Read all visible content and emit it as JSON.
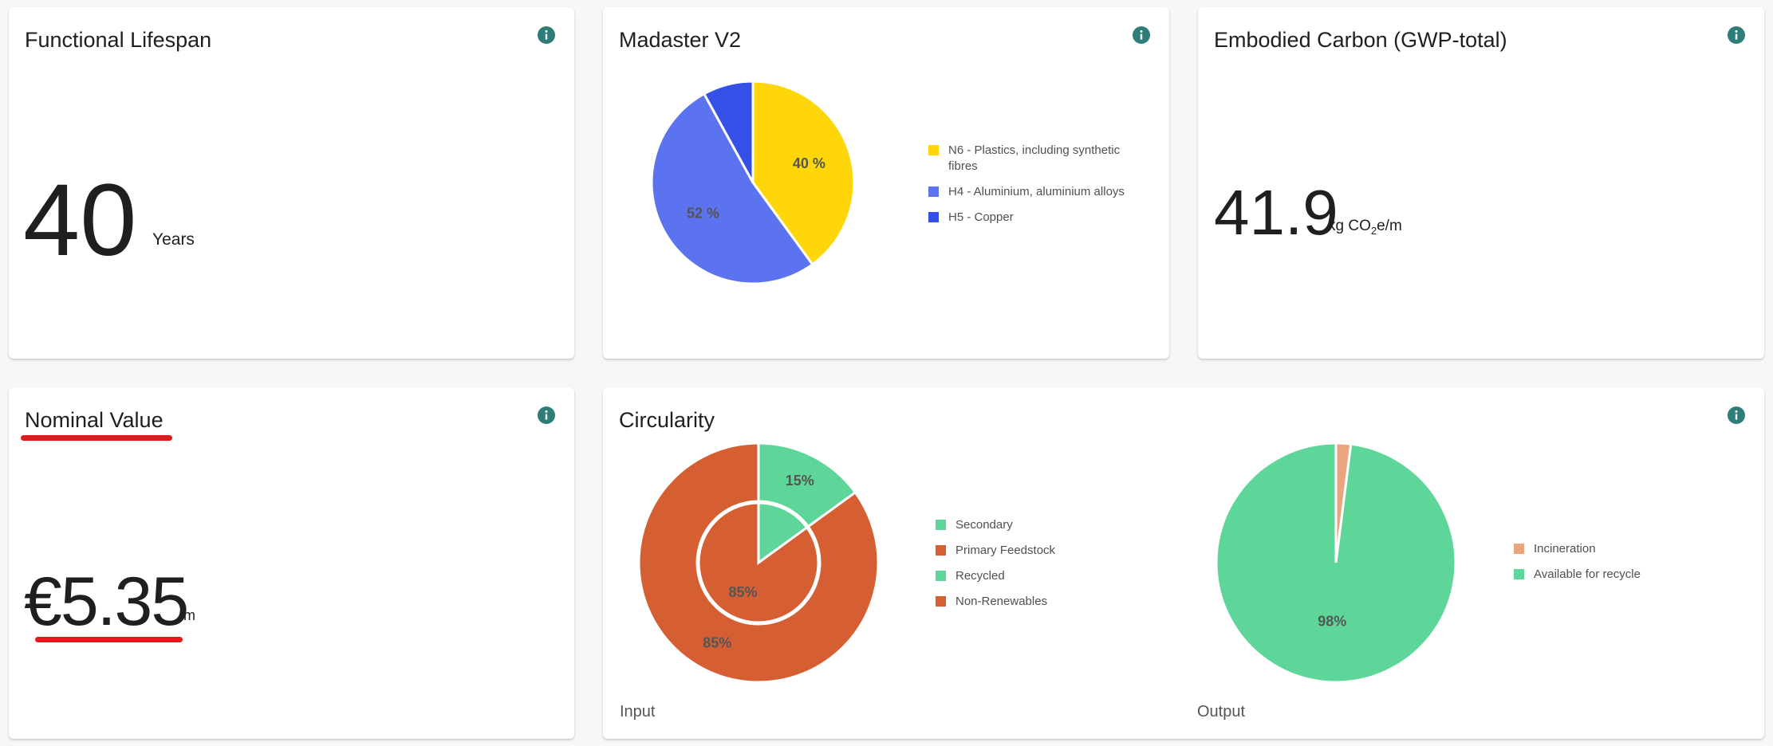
{
  "cards": {
    "lifespan": {
      "title": "Functional Lifespan",
      "value": "40",
      "unit": "Years"
    },
    "madaster": {
      "title": "Madaster V2",
      "pie": [
        {
          "label": "N6 - Plastics, including synthetic fibres",
          "value": 40,
          "display": "40 %",
          "color": "#FFD60A"
        },
        {
          "label": "H4 - Aluminium, aluminium alloys",
          "value": 52,
          "display": "52 %",
          "color": "#5B73EE"
        },
        {
          "label": "H5 - Copper",
          "value": 8,
          "display": "",
          "color": "#3450E6"
        }
      ]
    },
    "carbon": {
      "title": "Embodied Carbon (GWP-total)",
      "value": "41.9",
      "unit_pre": "kg CO",
      "unit_sub": "2",
      "unit_post": "e/m"
    },
    "nominal": {
      "title": "Nominal Value",
      "value": "€5.35",
      "unit": "/m"
    },
    "circularity": {
      "title": "Circularity",
      "input_label": "Input",
      "output_label": "Output",
      "input_outer": [
        {
          "label": "Secondary",
          "value": 15,
          "display": "15%",
          "color": "#5ED69A"
        },
        {
          "label": "Primary Feedstock",
          "value": 85,
          "display": "85%",
          "color": "#D55F33"
        }
      ],
      "input_inner": [
        {
          "label": "Recycled",
          "value": 15,
          "display": "",
          "color": "#5ED69A"
        },
        {
          "label": "Non-Renewables",
          "value": 85,
          "display": "85%",
          "color": "#D55F33"
        }
      ],
      "output": [
        {
          "label": "Incineration",
          "value": 2,
          "display": "",
          "color": "#E8A57E"
        },
        {
          "label": "Available for recycle",
          "value": 98,
          "display": "98%",
          "color": "#5ED69A"
        }
      ]
    }
  },
  "colors": {
    "info_icon": "#2E7D7A",
    "highlight": "#E11B1B"
  }
}
